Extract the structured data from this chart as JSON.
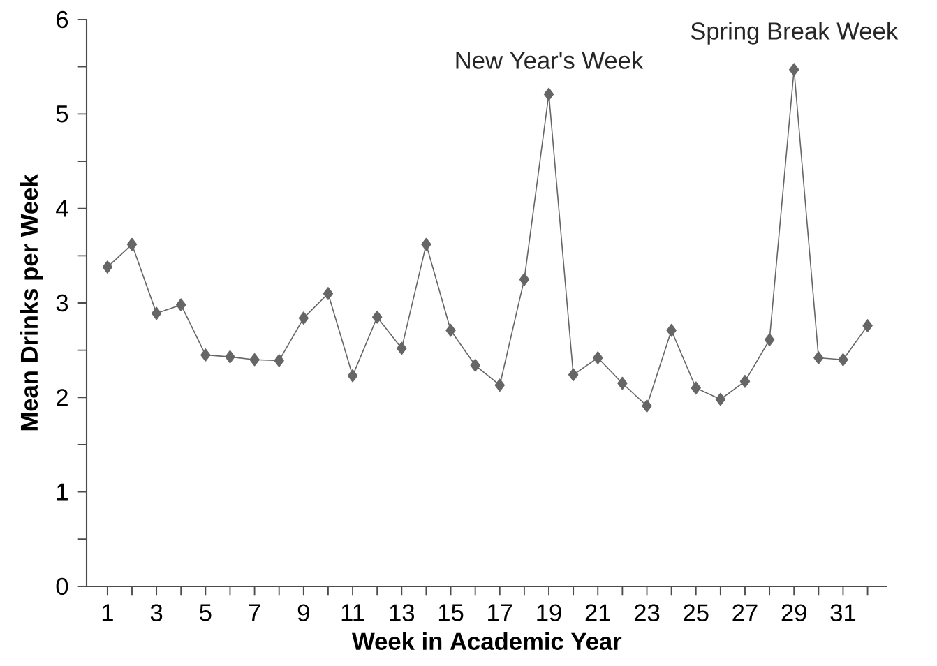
{
  "chart_data": {
    "type": "line",
    "xlabel": "Week in Academic Year",
    "ylabel": "Mean Drinks per Week",
    "x": [
      1,
      2,
      3,
      4,
      5,
      6,
      7,
      8,
      9,
      10,
      11,
      12,
      13,
      14,
      15,
      16,
      17,
      18,
      19,
      20,
      21,
      22,
      23,
      24,
      25,
      26,
      27,
      28,
      29,
      30,
      31,
      32
    ],
    "series": [
      {
        "color": "#666666",
        "values": [
          3.38,
          3.62,
          2.89,
          2.98,
          2.45,
          2.43,
          2.4,
          2.39,
          2.84,
          3.1,
          2.23,
          2.85,
          2.52,
          3.62,
          2.71,
          2.34,
          2.13,
          3.25,
          5.21,
          2.24,
          2.42,
          2.15,
          1.91,
          2.71,
          2.1,
          1.98,
          2.17,
          2.61,
          5.47,
          2.42,
          2.4,
          2.76
        ]
      }
    ],
    "marker": "diamond",
    "line_style": "solid",
    "grid": false,
    "xlim": [
      0.15,
      32.8
    ],
    "ylim": [
      0,
      6
    ],
    "xticks": [
      1,
      {
        "value": 2,
        "label": null
      },
      3,
      {
        "value": 4,
        "label": null
      },
      5,
      {
        "value": 6,
        "label": null
      },
      7,
      {
        "value": 8,
        "label": null
      },
      9,
      {
        "value": 10,
        "label": null
      },
      11,
      {
        "value": 12,
        "label": null
      },
      13,
      {
        "value": 14,
        "label": null
      },
      15,
      {
        "value": 16,
        "label": null
      },
      17,
      {
        "value": 18,
        "label": null
      },
      19,
      {
        "value": 20,
        "label": null
      },
      21,
      {
        "value": 22,
        "label": null
      },
      23,
      {
        "value": 24,
        "label": null
      },
      25,
      {
        "value": 26,
        "label": null
      },
      27,
      {
        "value": 28,
        "label": null
      },
      29,
      {
        "value": 30,
        "label": null
      },
      31,
      {
        "value": 32,
        "label": null
      }
    ],
    "yticks": [
      0,
      {
        "value": 0.5,
        "label": null
      },
      1,
      {
        "value": 1.5,
        "label": null
      },
      2,
      {
        "value": 2.5,
        "label": null
      },
      3,
      {
        "value": 3.5,
        "label": null
      },
      4,
      {
        "value": 4.5,
        "label": null
      },
      5,
      {
        "value": 5.5,
        "label": null
      },
      6
    ],
    "annotations": [
      {
        "text": "New Year's Week",
        "x": 19,
        "y": 5.21
      },
      {
        "text": "Spring Break Week",
        "x": 29,
        "y": 5.47
      }
    ]
  }
}
